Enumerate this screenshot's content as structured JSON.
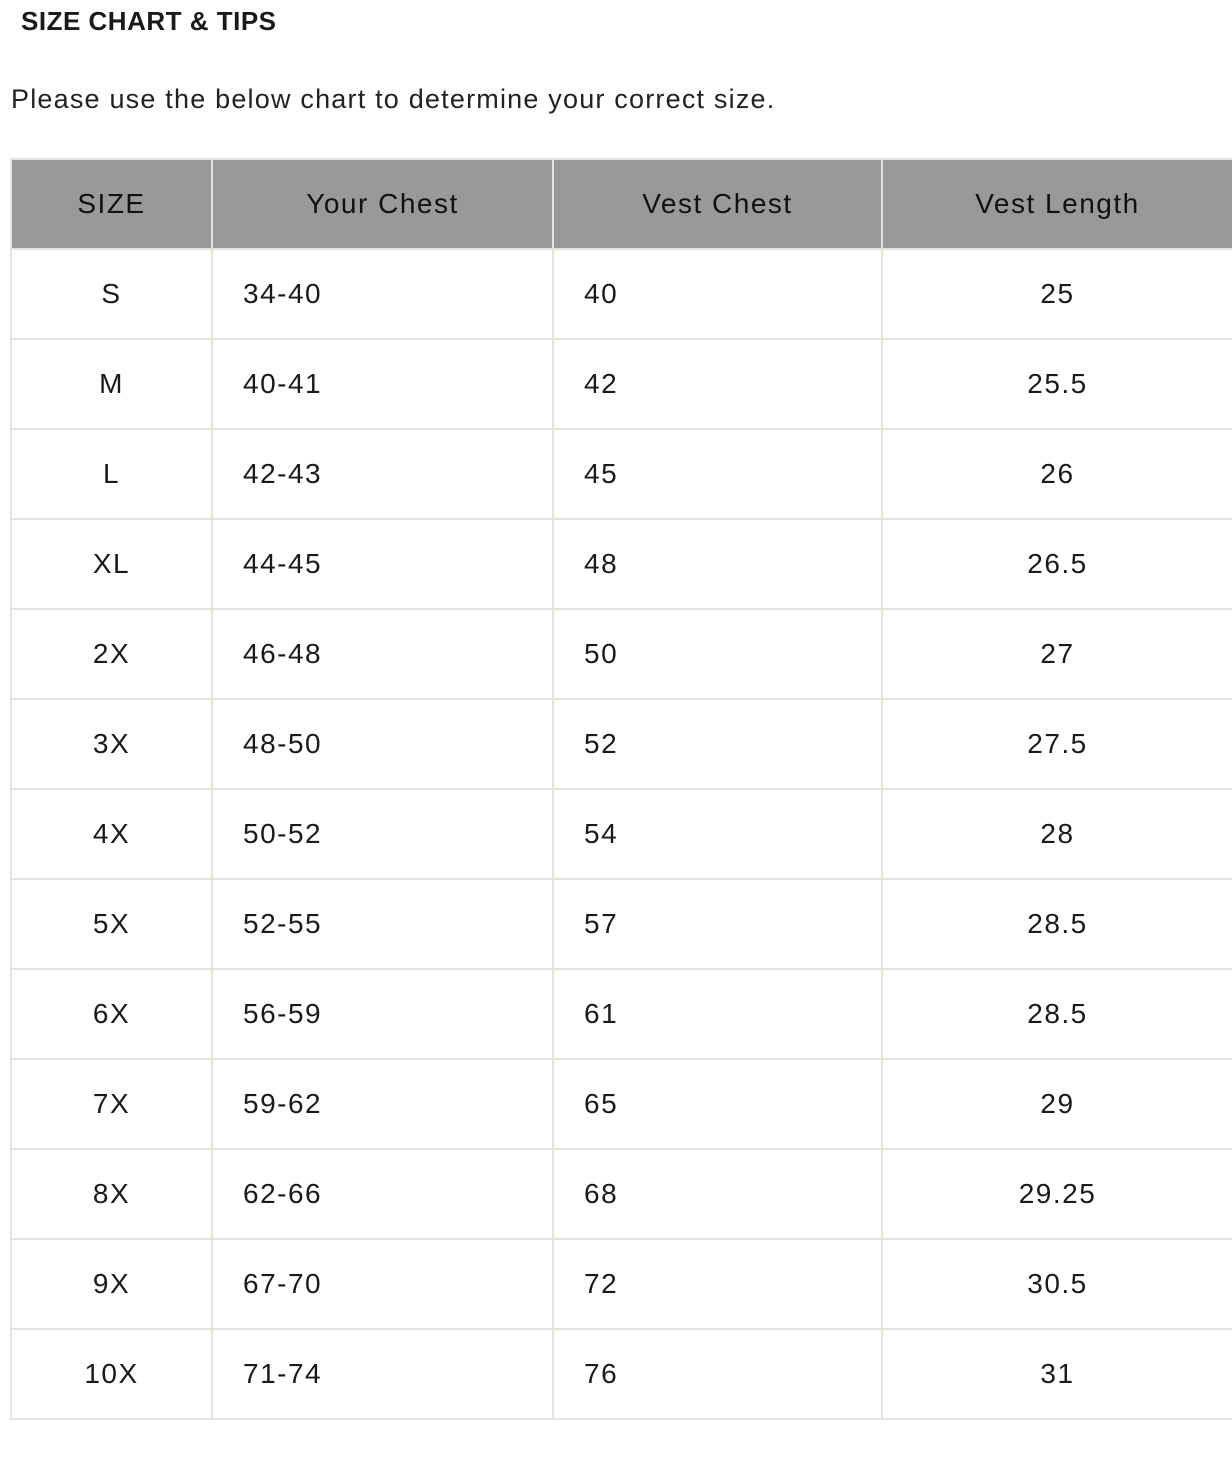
{
  "title": "SIZE CHART & TIPS",
  "intro": "Please use the below chart to determine your correct size.",
  "colors": {
    "header_bg": "#999999",
    "border": "#e4e4df"
  },
  "table": {
    "headers": [
      "SIZE",
      "Your Chest",
      "Vest Chest",
      "Vest Length"
    ],
    "rows": [
      [
        "S",
        "34-40",
        "40",
        "25"
      ],
      [
        "M",
        "40-41",
        "42",
        "25.5"
      ],
      [
        "L",
        "42-43",
        "45",
        "26"
      ],
      [
        "XL",
        "44-45",
        "48",
        "26.5"
      ],
      [
        "2X",
        "46-48",
        "50",
        "27"
      ],
      [
        "3X",
        "48-50",
        "52",
        "27.5"
      ],
      [
        "4X",
        "50-52",
        "54",
        "28"
      ],
      [
        "5X",
        "52-55",
        "57",
        "28.5"
      ],
      [
        "6X",
        "56-59",
        "61",
        "28.5"
      ],
      [
        "7X",
        "59-62",
        "65",
        "29"
      ],
      [
        "8X",
        "62-66",
        "68",
        "29.25"
      ],
      [
        "9X",
        "67-70",
        "72",
        "30.5"
      ],
      [
        "10X",
        "71-74",
        "76",
        "31"
      ]
    ]
  }
}
